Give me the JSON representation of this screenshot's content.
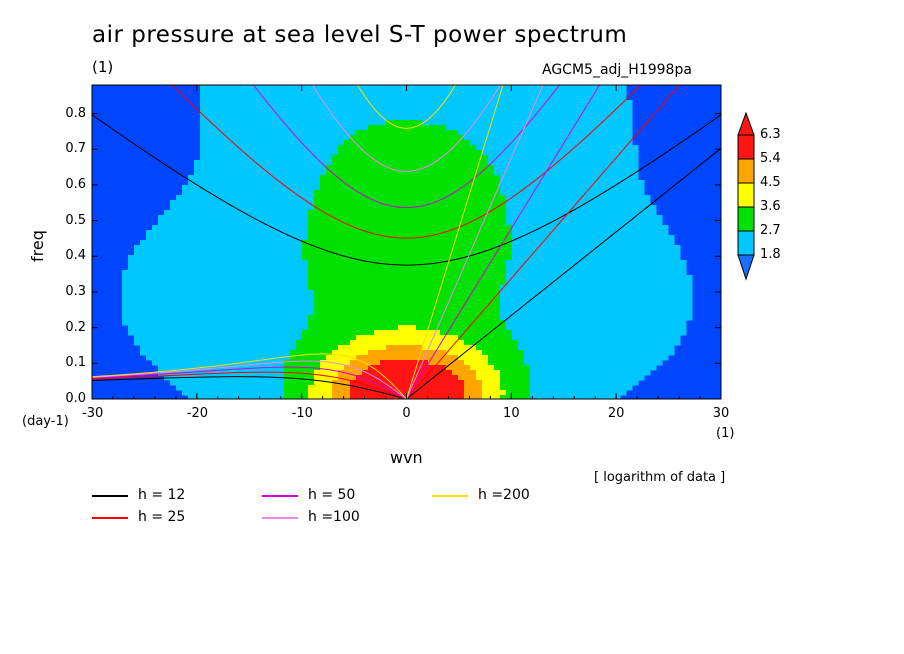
{
  "title": "air pressure at sea level S-T power spectrum",
  "subtitle_left": "(1)",
  "subtitle_right": "AGCM5_adj_H1998pa",
  "xlabel": "wvn",
  "ylabel": "freq",
  "yunit": "(day-1)",
  "xunit": "(1)",
  "note": "[ logarithm of data ]",
  "chart_data": {
    "type": "heatmap",
    "x_ticks": [
      -30,
      -20,
      -10,
      0,
      10,
      20,
      30
    ],
    "y_ticks": [
      0.0,
      0.1,
      0.2,
      0.3,
      0.4,
      0.5,
      0.6,
      0.7,
      0.8
    ],
    "xlim": [
      -30,
      30
    ],
    "ylim": [
      0,
      0.88
    ],
    "colorbar": {
      "levels": [
        "1.8",
        "2.7",
        "3.6",
        "4.5",
        "5.4",
        "6.3"
      ],
      "colors": [
        "#1a6fff",
        "#00c8ff",
        "#00e100",
        "#ffff00",
        "#ffa500",
        "#ff1414",
        "#ff1414"
      ],
      "background": "#0046ff"
    },
    "contour_fill": {
      "description": "logarithm of power; maximum near wvn 0, freq 0",
      "peak": [
        0,
        0.0
      ],
      "level_colors_order": "low to high"
    },
    "dispersion_curves": [
      {
        "name": "h = 12",
        "color": "#000000",
        "h": 12
      },
      {
        "name": "h = 25",
        "color": "#ff0000",
        "h": 25
      },
      {
        "name": "h = 50",
        "color": "#d800d8",
        "h": 50
      },
      {
        "name": "h =100",
        "color": "#ee88ee",
        "h": 100
      },
      {
        "name": "h =200",
        "color": "#ffdc00",
        "h": 200
      }
    ]
  }
}
